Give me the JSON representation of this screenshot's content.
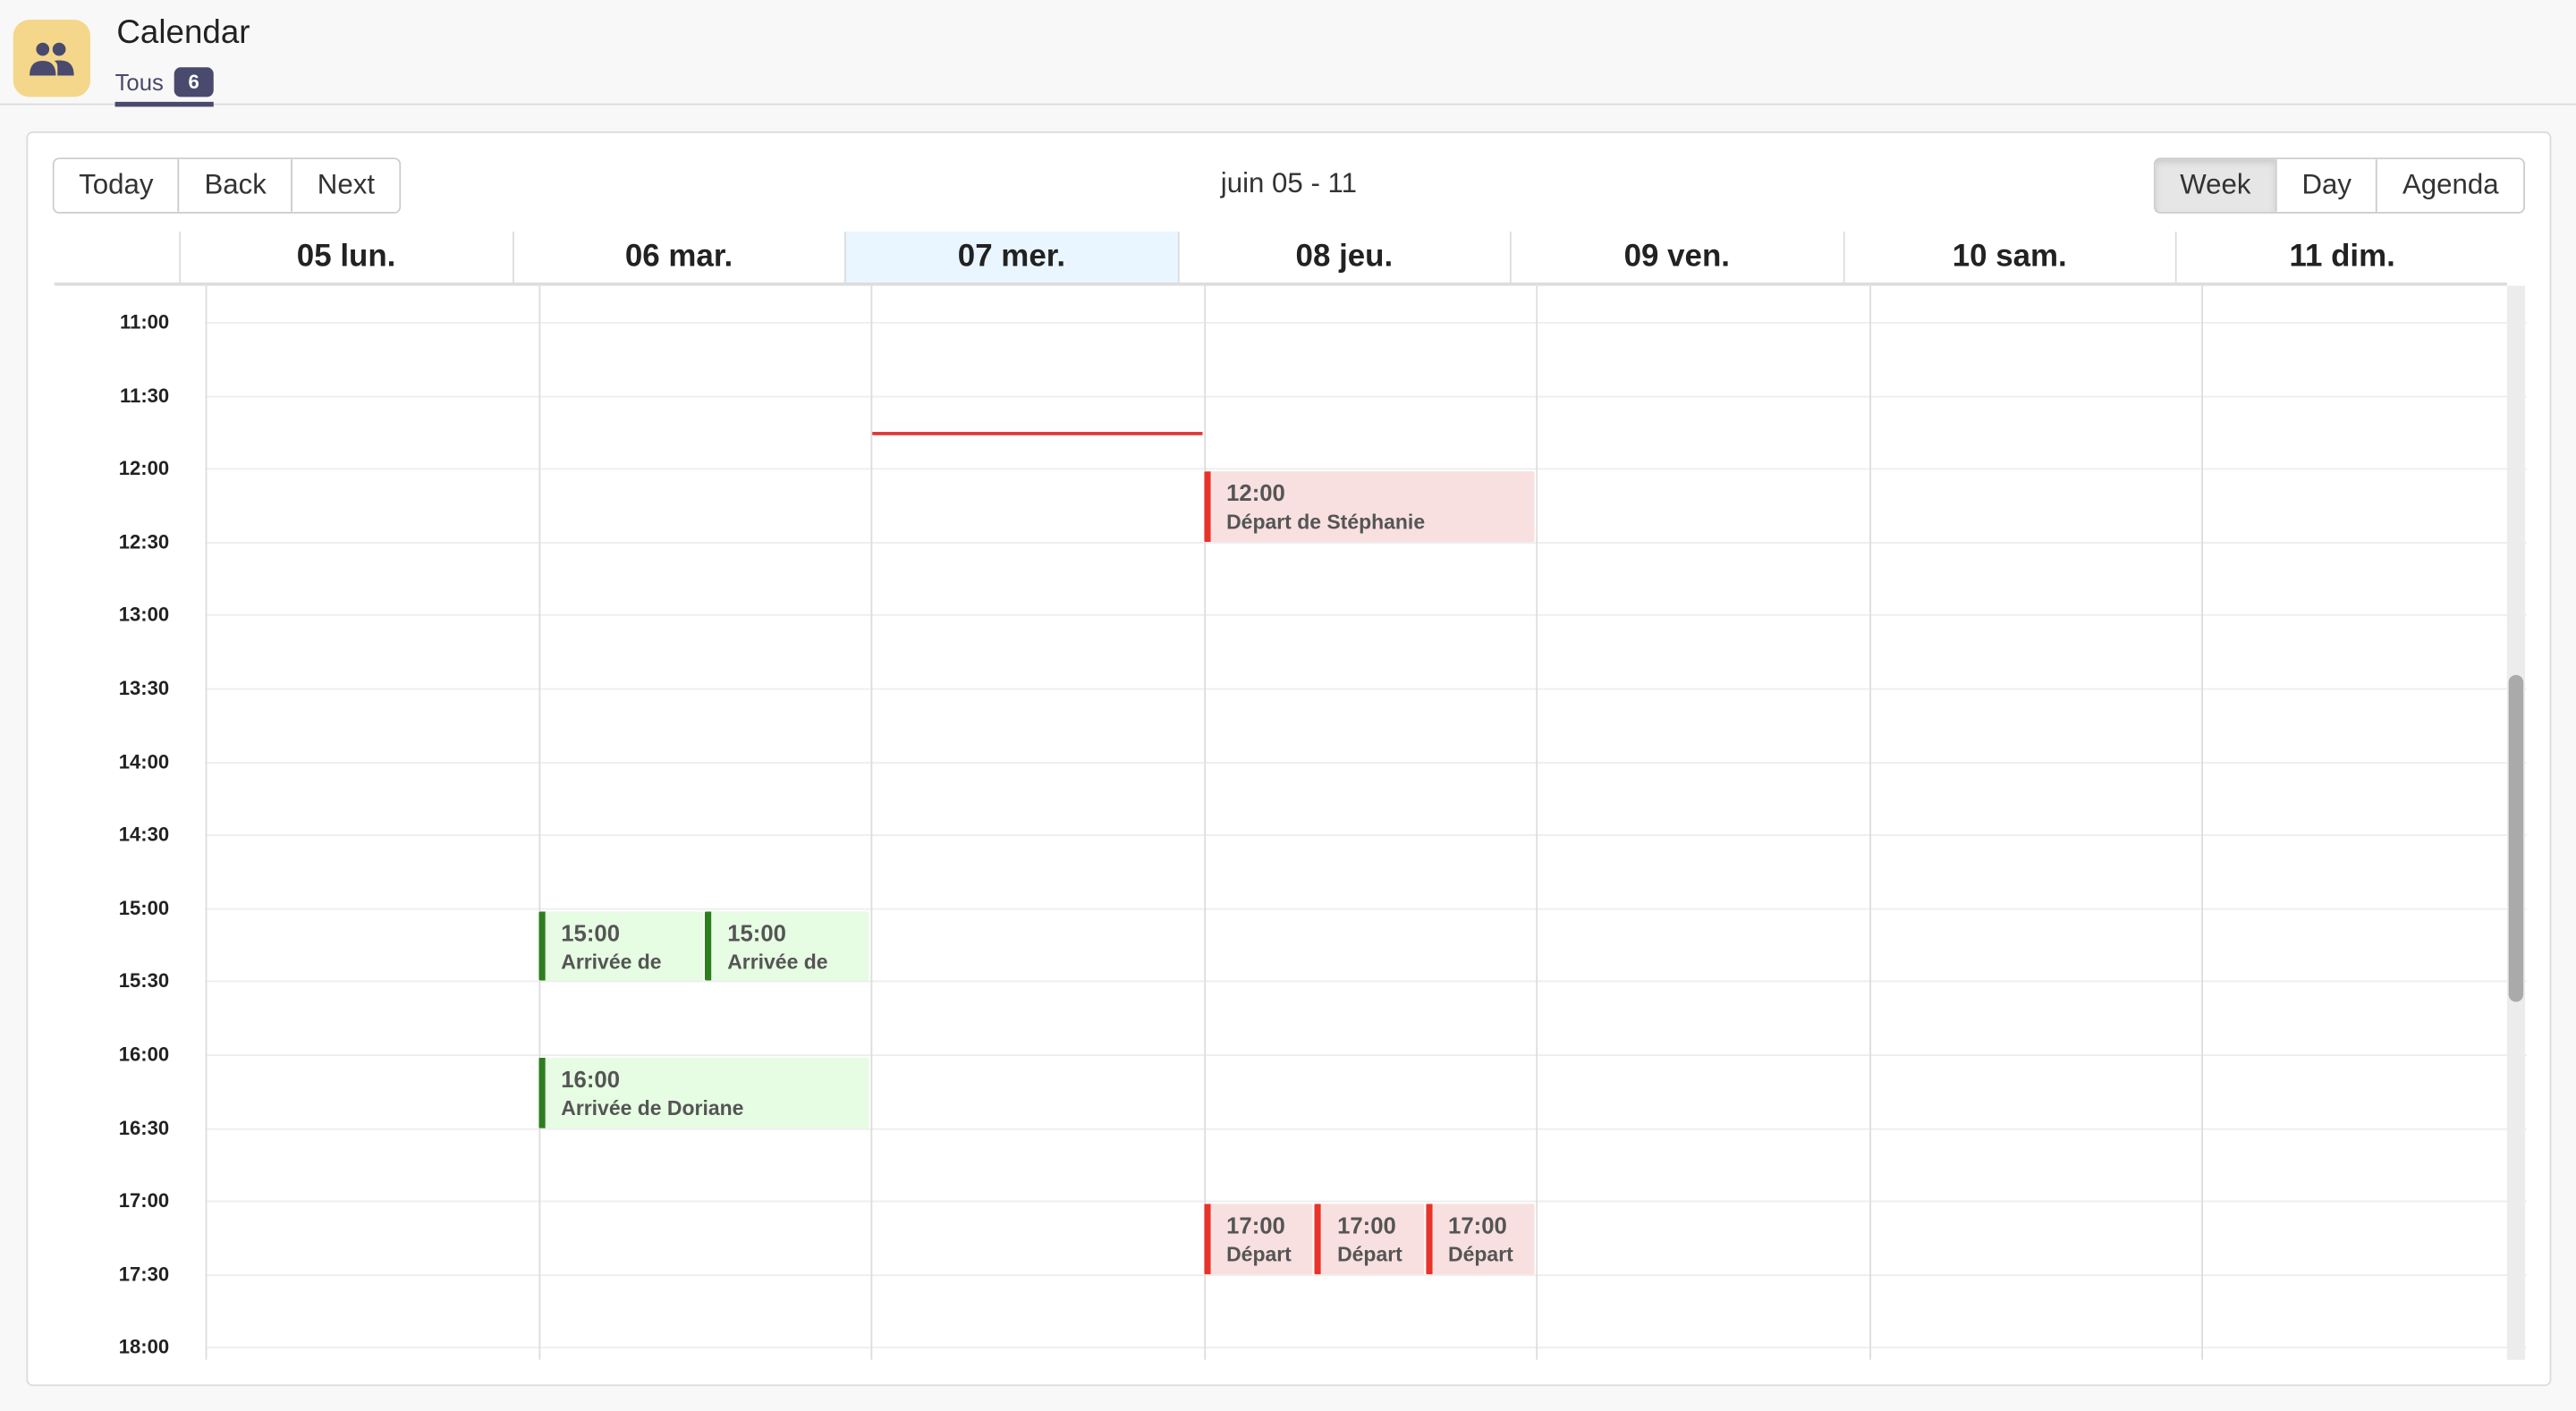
{
  "app": {
    "title": "Calendar",
    "icon": "people-icon",
    "icon_bg": "#f4d78a"
  },
  "tabs": [
    {
      "label": "Tous",
      "count": "6"
    }
  ],
  "toolbar": {
    "nav": [
      "Today",
      "Back",
      "Next"
    ],
    "range_label": "juin 05 - 11",
    "views": [
      "Week",
      "Day",
      "Agenda"
    ],
    "active_view": "Week"
  },
  "days": [
    "05 lun.",
    "06 mar.",
    "07 mer.",
    "08 jeu.",
    "09 ven.",
    "10 sam.",
    "11 dim."
  ],
  "today_index": 2,
  "time_slots": [
    "11:00",
    "11:30",
    "12:00",
    "12:30",
    "13:00",
    "13:30",
    "14:00",
    "14:30",
    "15:00",
    "15:30",
    "16:00",
    "16:30",
    "17:00",
    "17:30",
    "18:00"
  ],
  "current_time": "11:45",
  "scroll_position_percent": 52,
  "colors": {
    "depart": "#e8332a",
    "arrivee": "#2e7d1f",
    "now_line": "#e33333"
  },
  "events": [
    {
      "day": 3,
      "start": "12:00",
      "end": "12:30",
      "time": "12:00",
      "title": "Départ de Stéphanie",
      "kind": "depart"
    },
    {
      "day": 1,
      "start": "15:00",
      "end": "15:30",
      "time": "15:00",
      "title": "Arrivée de",
      "kind": "arrivee"
    },
    {
      "day": 1,
      "start": "15:00",
      "end": "15:30",
      "time": "15:00",
      "title": "Arrivée de",
      "kind": "arrivee"
    },
    {
      "day": 1,
      "start": "16:00",
      "end": "16:30",
      "time": "16:00",
      "title": "Arrivée de Doriane",
      "kind": "arrivee"
    },
    {
      "day": 3,
      "start": "17:00",
      "end": "17:30",
      "time": "17:00",
      "title": "Départ",
      "kind": "depart"
    },
    {
      "day": 3,
      "start": "17:00",
      "end": "17:30",
      "time": "17:00",
      "title": "Départ",
      "kind": "depart"
    },
    {
      "day": 3,
      "start": "17:00",
      "end": "17:30",
      "time": "17:00",
      "title": "Départ",
      "kind": "depart"
    }
  ]
}
